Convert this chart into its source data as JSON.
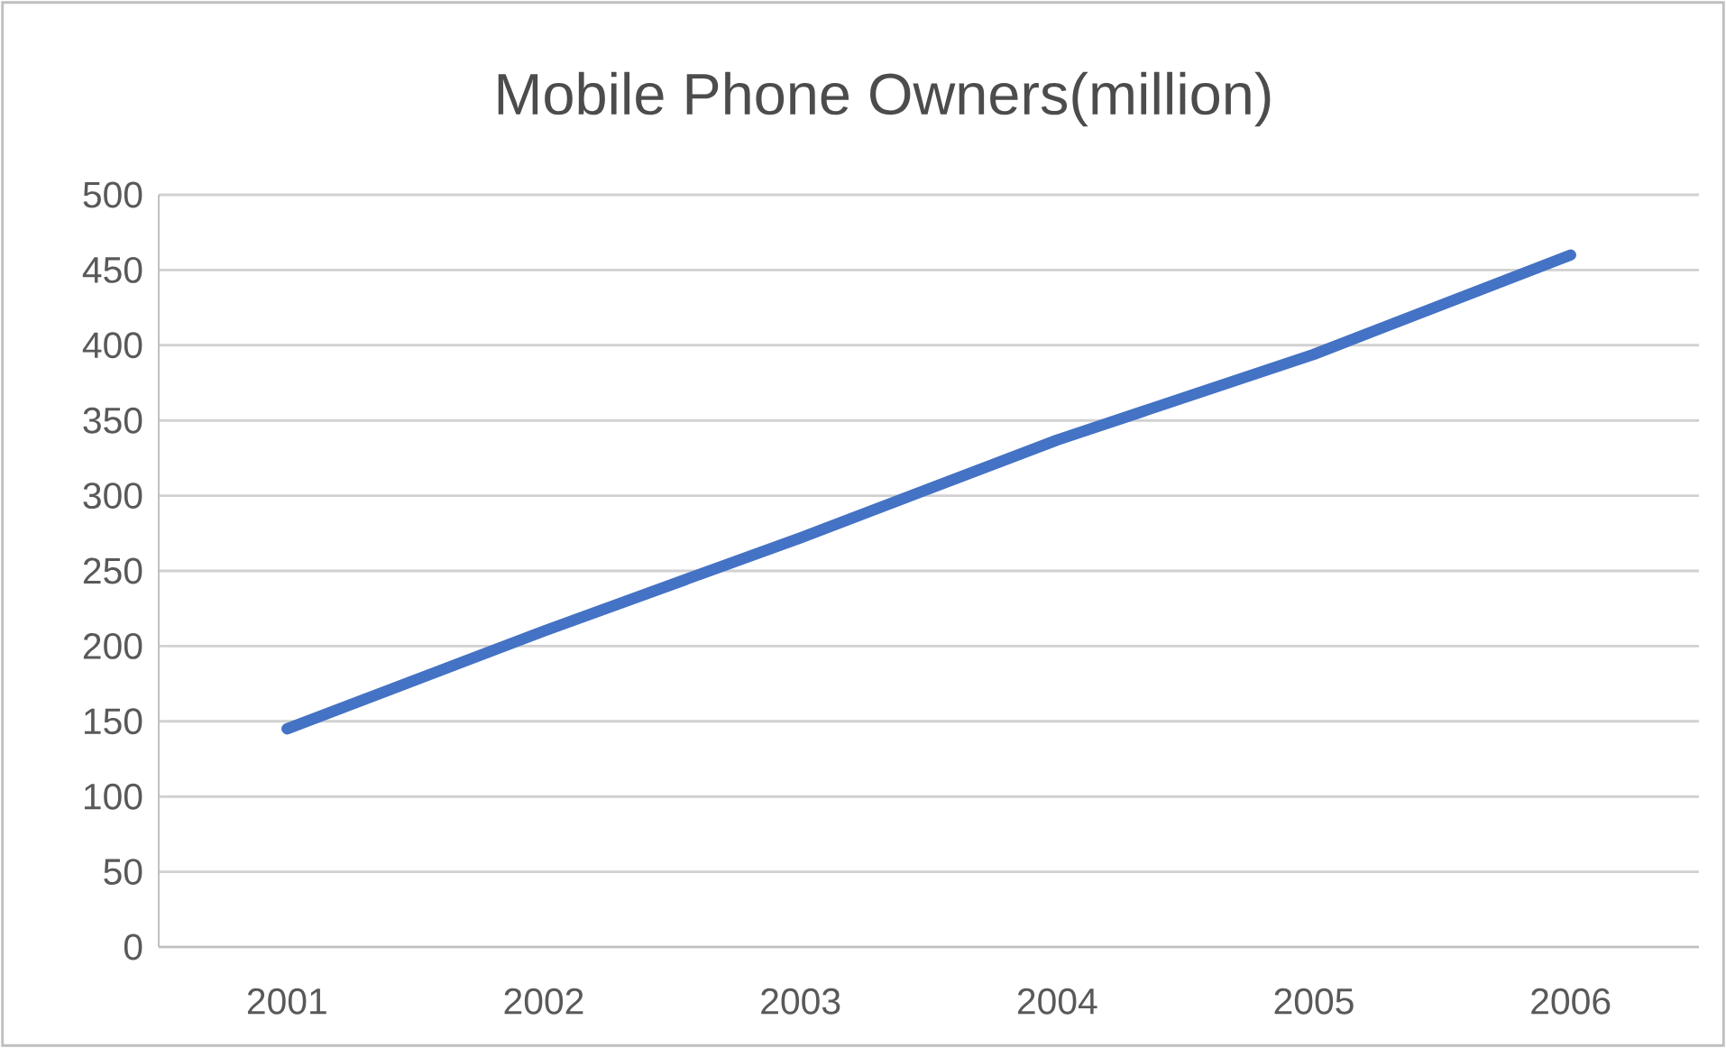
{
  "chart_data": {
    "type": "line",
    "title": "Mobile Phone Owners(million)",
    "categories": [
      "2001",
      "2002",
      "2003",
      "2004",
      "2005",
      "2006"
    ],
    "series": [
      {
        "color": "#4472c4",
        "values": [
          145,
          210,
          272,
          337,
          394,
          460
        ]
      }
    ],
    "ylim": [
      0,
      500
    ],
    "yticks": [
      0,
      50,
      100,
      150,
      200,
      250,
      300,
      350,
      400,
      450,
      500
    ],
    "grid": "y"
  }
}
